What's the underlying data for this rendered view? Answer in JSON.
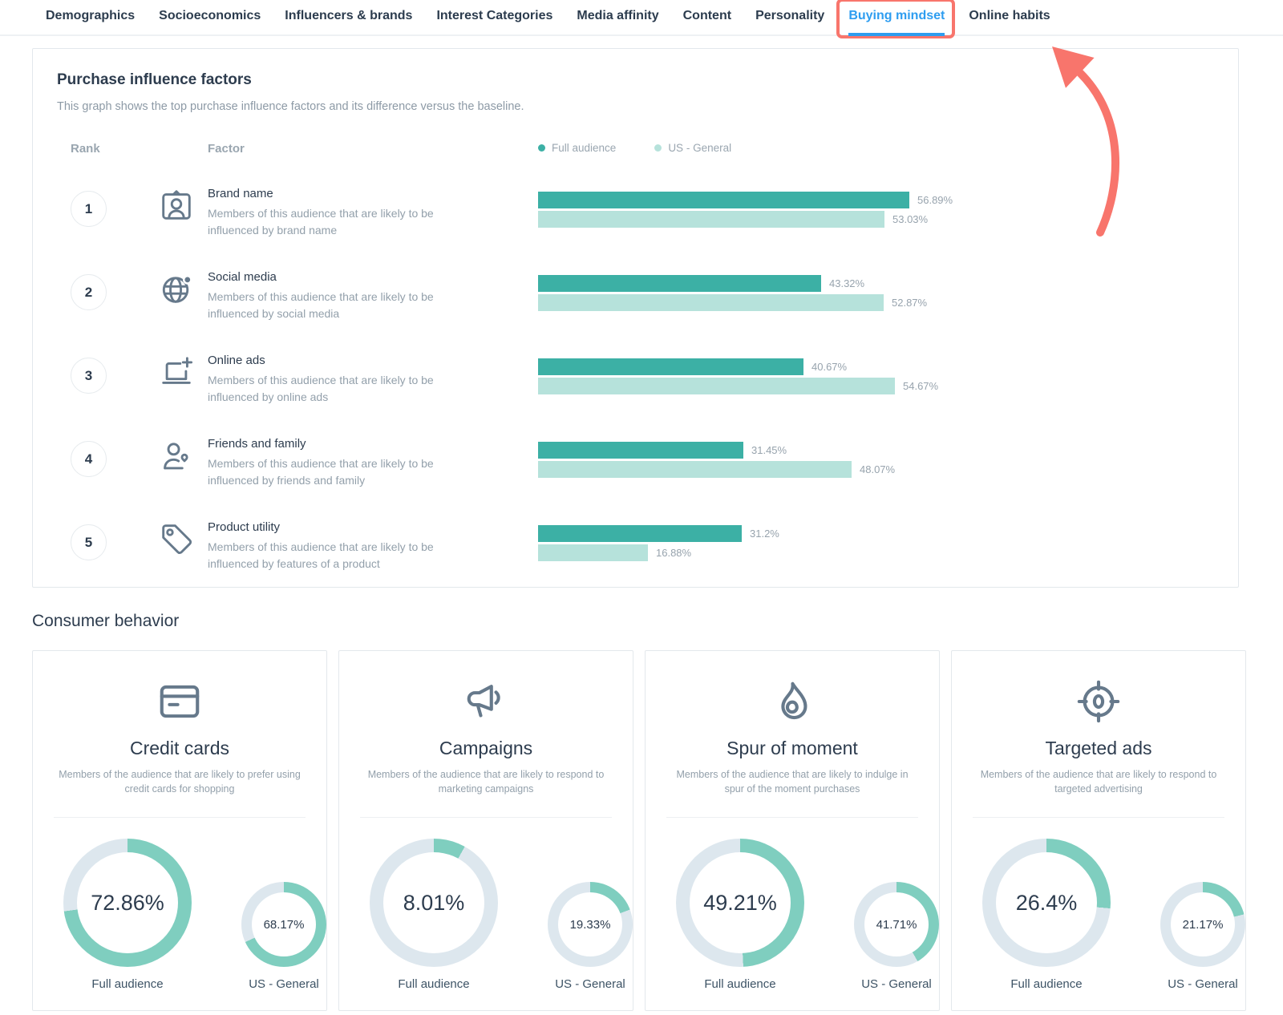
{
  "tabs": {
    "items": [
      {
        "label": "Demographics",
        "active": false
      },
      {
        "label": "Socioeconomics",
        "active": false
      },
      {
        "label": "Influencers & brands",
        "active": false
      },
      {
        "label": "Interest Categories",
        "active": false
      },
      {
        "label": "Media affinity",
        "active": false
      },
      {
        "label": "Content",
        "active": false
      },
      {
        "label": "Personality",
        "active": false
      },
      {
        "label": "Buying mindset",
        "active": true,
        "highlighted": true
      },
      {
        "label": "Online habits",
        "active": false
      }
    ]
  },
  "purchase_influence": {
    "title": "Purchase influence factors",
    "subtitle": "This graph shows the top purchase influence factors and its difference versus the baseline.",
    "columns": {
      "rank": "Rank",
      "factor": "Factor"
    },
    "legend": [
      {
        "label": "Full audience",
        "color": "#3cb0a5"
      },
      {
        "label": "US - General",
        "color": "#b6e2db"
      }
    ],
    "axis_max_pct": 70,
    "rows": [
      {
        "rank": "1",
        "icon": "brand-name-icon",
        "factor": "Brand name",
        "description": "Members of this audience that are likely to be influenced by brand name",
        "full_audience_pct": 56.89,
        "full_audience_label": "56.89%",
        "us_general_pct": 53.03,
        "us_general_label": "53.03%"
      },
      {
        "rank": "2",
        "icon": "social-media-globe-icon",
        "factor": "Social media",
        "description": "Members of this audience that are likely to be influenced by social media",
        "full_audience_pct": 43.32,
        "full_audience_label": "43.32%",
        "us_general_pct": 52.87,
        "us_general_label": "52.87%"
      },
      {
        "rank": "3",
        "icon": "online-ads-icon",
        "factor": "Online ads",
        "description": "Members of this audience that are likely to be influenced by online ads",
        "full_audience_pct": 40.67,
        "full_audience_label": "40.67%",
        "us_general_pct": 54.67,
        "us_general_label": "54.67%"
      },
      {
        "rank": "4",
        "icon": "friends-family-icon",
        "factor": "Friends and family",
        "description": "Members of this audience that are likely to be influenced by friends and family",
        "full_audience_pct": 31.45,
        "full_audience_label": "31.45%",
        "us_general_pct": 48.07,
        "us_general_label": "48.07%"
      },
      {
        "rank": "5",
        "icon": "product-utility-tag-icon",
        "factor": "Product utility",
        "description": "Members of this audience that are likely to be influenced by features of a product",
        "full_audience_pct": 31.2,
        "full_audience_label": "31.2%",
        "us_general_pct": 16.88,
        "us_general_label": "16.88%"
      }
    ]
  },
  "consumer_behavior": {
    "title": "Consumer behavior",
    "cards": [
      {
        "icon": "credit-card-icon",
        "title": "Credit cards",
        "description": "Members of the audience that are likely to prefer using credit cards for shopping",
        "full_audience": {
          "label": "Full audience",
          "value_pct": 72.86,
          "value_label": "72.86%"
        },
        "us_general": {
          "label": "US - General",
          "value_pct": 68.17,
          "value_label": "68.17%"
        }
      },
      {
        "icon": "megaphone-icon",
        "title": "Campaigns",
        "description": "Members of the audience that are likely to respond to marketing campaigns",
        "full_audience": {
          "label": "Full audience",
          "value_pct": 8.01,
          "value_label": "8.01%"
        },
        "us_general": {
          "label": "US - General",
          "value_pct": 19.33,
          "value_label": "19.33%"
        }
      },
      {
        "icon": "flame-icon",
        "title": "Spur of moment",
        "description": "Members of the audience that are likely to indulge in spur of the moment purchases",
        "full_audience": {
          "label": "Full audience",
          "value_pct": 49.21,
          "value_label": "49.21%"
        },
        "us_general": {
          "label": "US - General",
          "value_pct": 41.71,
          "value_label": "41.71%"
        }
      },
      {
        "icon": "target-icon",
        "title": "Targeted ads",
        "description": "Members of the audience that are likely to respond to targeted advertising",
        "full_audience": {
          "label": "Full audience",
          "value_pct": 26.4,
          "value_label": "26.4%"
        },
        "us_general": {
          "label": "US - General",
          "value_pct": 21.17,
          "value_label": "21.17%"
        }
      }
    ]
  },
  "colors": {
    "bar_full_audience": "#3cb0a5",
    "bar_us_general": "#b6e2db",
    "donut_fill": "#7fcebf",
    "donut_track": "#dde7ee",
    "active_tab_color": "#2e9df0",
    "annotation_color": "#f8756c"
  },
  "chart_data": [
    {
      "type": "bar",
      "orientation": "horizontal",
      "title": "Purchase influence factors",
      "categories": [
        "Brand name",
        "Social media",
        "Online ads",
        "Friends and family",
        "Product utility"
      ],
      "series": [
        {
          "name": "Full audience",
          "values": [
            56.89,
            43.32,
            40.67,
            31.45,
            31.2
          ]
        },
        {
          "name": "US - General",
          "values": [
            53.03,
            52.87,
            54.67,
            48.07,
            16.88
          ]
        }
      ],
      "unit": "%",
      "xlim": [
        0,
        70
      ],
      "grid": false,
      "legend_position": "top"
    },
    {
      "type": "pie",
      "variant": "donut",
      "title": "Consumer behavior",
      "groups": [
        {
          "label": "Credit cards",
          "values": [
            {
              "name": "Full audience",
              "value": 72.86
            },
            {
              "name": "US - General",
              "value": 68.17
            }
          ]
        },
        {
          "label": "Campaigns",
          "values": [
            {
              "name": "Full audience",
              "value": 8.01
            },
            {
              "name": "US - General",
              "value": 19.33
            }
          ]
        },
        {
          "label": "Spur of moment",
          "values": [
            {
              "name": "Full audience",
              "value": 49.21
            },
            {
              "name": "US - General",
              "value": 41.71
            }
          ]
        },
        {
          "label": "Targeted ads",
          "values": [
            {
              "name": "Full audience",
              "value": 26.4
            },
            {
              "name": "US - General",
              "value": 21.17
            }
          ]
        }
      ],
      "unit": "%"
    }
  ]
}
